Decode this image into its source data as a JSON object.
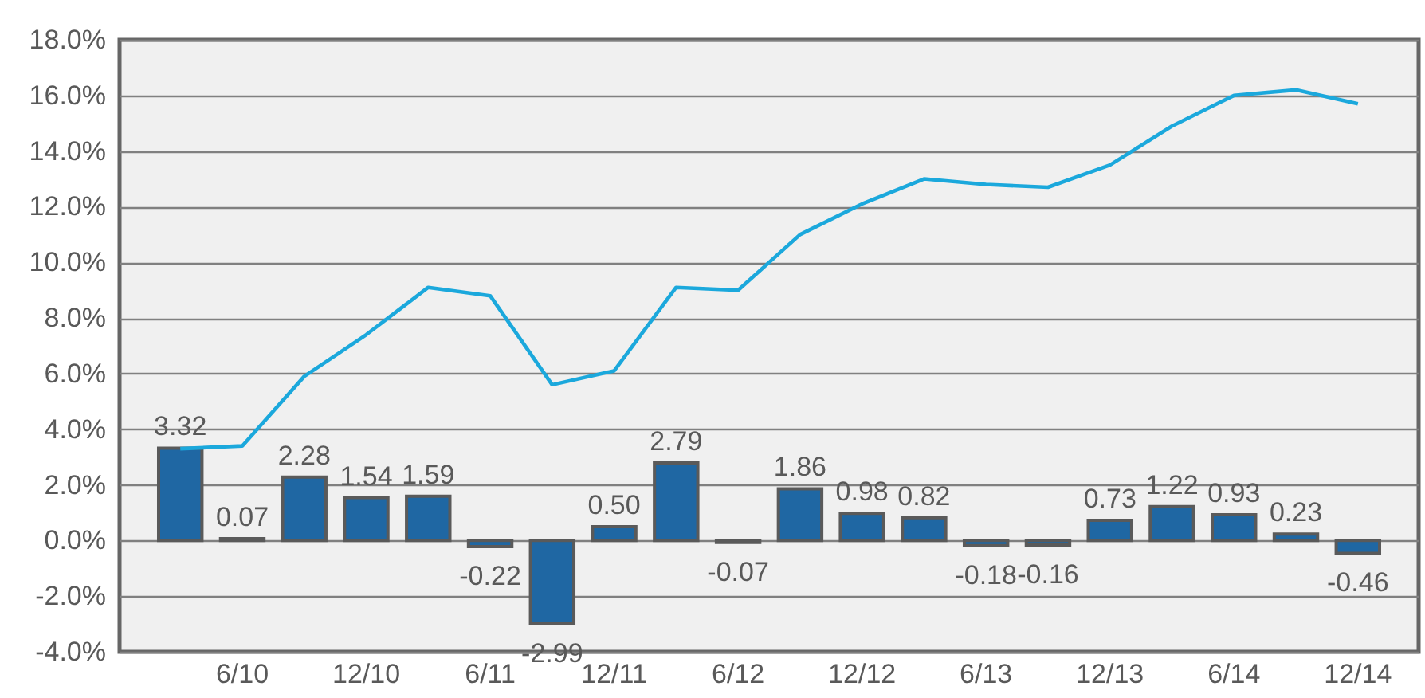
{
  "chart_data": {
    "type": "bar",
    "categories": [
      null,
      "6/10",
      null,
      "12/10",
      null,
      "6/11",
      null,
      "12/11",
      null,
      "6/12",
      null,
      "12/12",
      null,
      "6/13",
      null,
      "12/13",
      null,
      "6/14",
      null,
      "12/14"
    ],
    "series": [
      {
        "type": "bar",
        "color": "#1f67a3",
        "values": [
          3.32,
          0.07,
          2.28,
          1.54,
          1.59,
          -0.22,
          -2.99,
          0.5,
          2.79,
          -0.07,
          1.86,
          0.98,
          0.82,
          -0.18,
          -0.16,
          0.73,
          1.22,
          0.93,
          0.23,
          -0.46
        ],
        "value_labels": [
          "3.32",
          "0.07",
          "2.28",
          "1.54",
          "1.59",
          "-0.22",
          "-2.99",
          "0.50",
          "2.79",
          "-0.07",
          "1.86",
          "0.98",
          "0.82",
          "-0.18",
          "-0.16",
          "0.73",
          "1.22",
          "0.93",
          "0.23",
          "-0.46"
        ]
      },
      {
        "type": "line",
        "color": "#1ba8dc",
        "values": [
          3.3,
          3.4,
          5.9,
          7.4,
          9.1,
          8.8,
          5.6,
          6.1,
          9.1,
          9.0,
          11.0,
          12.1,
          13.0,
          12.8,
          12.7,
          13.5,
          14.9,
          16.0,
          16.2,
          15.7
        ]
      }
    ],
    "ylim": [
      -4,
      18
    ],
    "yticks": [
      {
        "value": -4,
        "label": "-4.0%"
      },
      {
        "value": -2,
        "label": "-2.0%"
      },
      {
        "value": 0,
        "label": "0.0%"
      },
      {
        "value": 2,
        "label": "2.0%"
      },
      {
        "value": 4,
        "label": "4.0%"
      },
      {
        "value": 6,
        "label": "6.0%"
      },
      {
        "value": 8,
        "label": "8.0%"
      },
      {
        "value": 10,
        "label": "10.0%"
      },
      {
        "value": 12,
        "label": "12.0%"
      },
      {
        "value": 14,
        "label": "14.0%"
      },
      {
        "value": 16,
        "label": "16.0%"
      },
      {
        "value": 18,
        "label": "18.0%"
      }
    ],
    "grid": "y"
  }
}
